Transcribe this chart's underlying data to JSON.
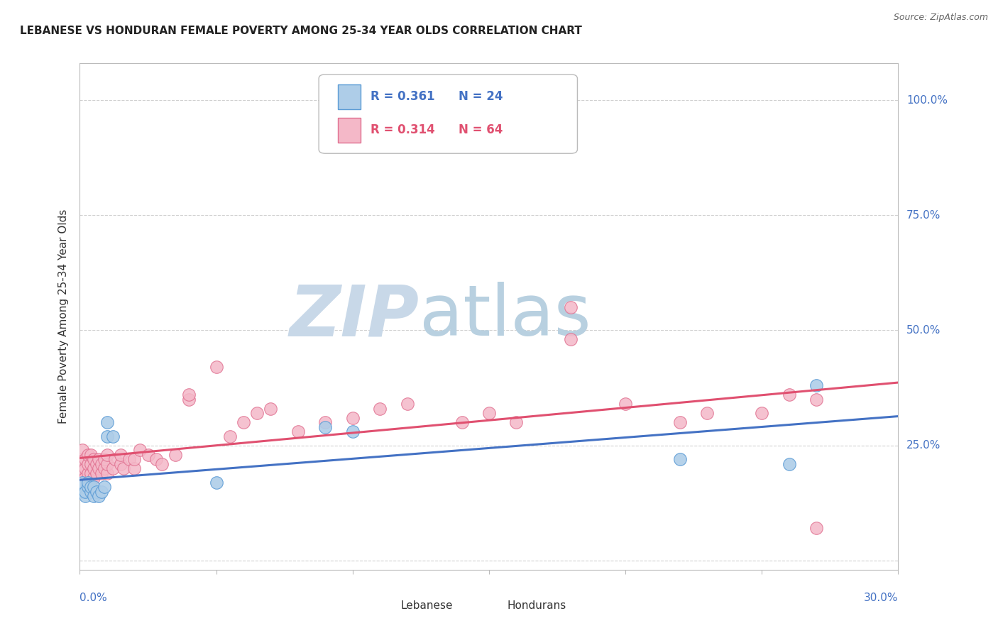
{
  "title": "LEBANESE VS HONDURAN FEMALE POVERTY AMONG 25-34 YEAR OLDS CORRELATION CHART",
  "source": "Source: ZipAtlas.com",
  "ylabel": "Female Poverty Among 25-34 Year Olds",
  "xlim": [
    0.0,
    0.3
  ],
  "ylim": [
    -0.02,
    1.08
  ],
  "ytick_values": [
    0.0,
    0.25,
    0.5,
    0.75,
    1.0
  ],
  "ytick_labels": [
    "",
    "25.0%",
    "50.0%",
    "75.0%",
    "100.0%"
  ],
  "blue_fill": "#aecde8",
  "blue_edge": "#5b9bd5",
  "pink_fill": "#f4b8c8",
  "pink_edge": "#e07090",
  "blue_line": "#4472c4",
  "pink_line": "#e05070",
  "grid_color": "#d0d0d0",
  "bg_color": "#ffffff",
  "watermark_zip_color": "#c8d8e8",
  "watermark_atlas_color": "#b8d0e0",
  "lebanese_x": [
    0.001,
    0.001,
    0.001,
    0.002,
    0.002,
    0.003,
    0.003,
    0.004,
    0.004,
    0.005,
    0.005,
    0.006,
    0.007,
    0.008,
    0.009,
    0.01,
    0.01,
    0.012,
    0.05,
    0.09,
    0.1,
    0.22,
    0.26,
    0.27
  ],
  "lebanese_y": [
    0.15,
    0.16,
    0.17,
    0.14,
    0.15,
    0.16,
    0.17,
    0.15,
    0.16,
    0.14,
    0.16,
    0.15,
    0.14,
    0.15,
    0.16,
    0.3,
    0.27,
    0.27,
    0.17,
    0.29,
    0.28,
    0.22,
    0.21,
    0.38
  ],
  "honduran_x": [
    0.001,
    0.001,
    0.001,
    0.001,
    0.002,
    0.002,
    0.002,
    0.003,
    0.003,
    0.003,
    0.004,
    0.004,
    0.004,
    0.005,
    0.005,
    0.005,
    0.006,
    0.006,
    0.007,
    0.007,
    0.008,
    0.008,
    0.009,
    0.009,
    0.01,
    0.01,
    0.01,
    0.012,
    0.013,
    0.015,
    0.015,
    0.016,
    0.018,
    0.02,
    0.02,
    0.022,
    0.025,
    0.028,
    0.03,
    0.035,
    0.04,
    0.04,
    0.05,
    0.055,
    0.06,
    0.065,
    0.07,
    0.08,
    0.09,
    0.1,
    0.11,
    0.12,
    0.14,
    0.15,
    0.16,
    0.18,
    0.18,
    0.2,
    0.22,
    0.23,
    0.25,
    0.26,
    0.27,
    0.27
  ],
  "honduran_y": [
    0.18,
    0.2,
    0.22,
    0.24,
    0.18,
    0.2,
    0.22,
    0.19,
    0.21,
    0.23,
    0.19,
    0.21,
    0.23,
    0.18,
    0.2,
    0.22,
    0.19,
    0.21,
    0.2,
    0.22,
    0.19,
    0.21,
    0.2,
    0.22,
    0.19,
    0.21,
    0.23,
    0.2,
    0.22,
    0.21,
    0.23,
    0.2,
    0.22,
    0.2,
    0.22,
    0.24,
    0.23,
    0.22,
    0.21,
    0.23,
    0.35,
    0.36,
    0.42,
    0.27,
    0.3,
    0.32,
    0.33,
    0.28,
    0.3,
    0.31,
    0.33,
    0.34,
    0.3,
    0.32,
    0.3,
    0.55,
    0.48,
    0.34,
    0.3,
    0.32,
    0.32,
    0.36,
    0.35,
    0.07
  ]
}
